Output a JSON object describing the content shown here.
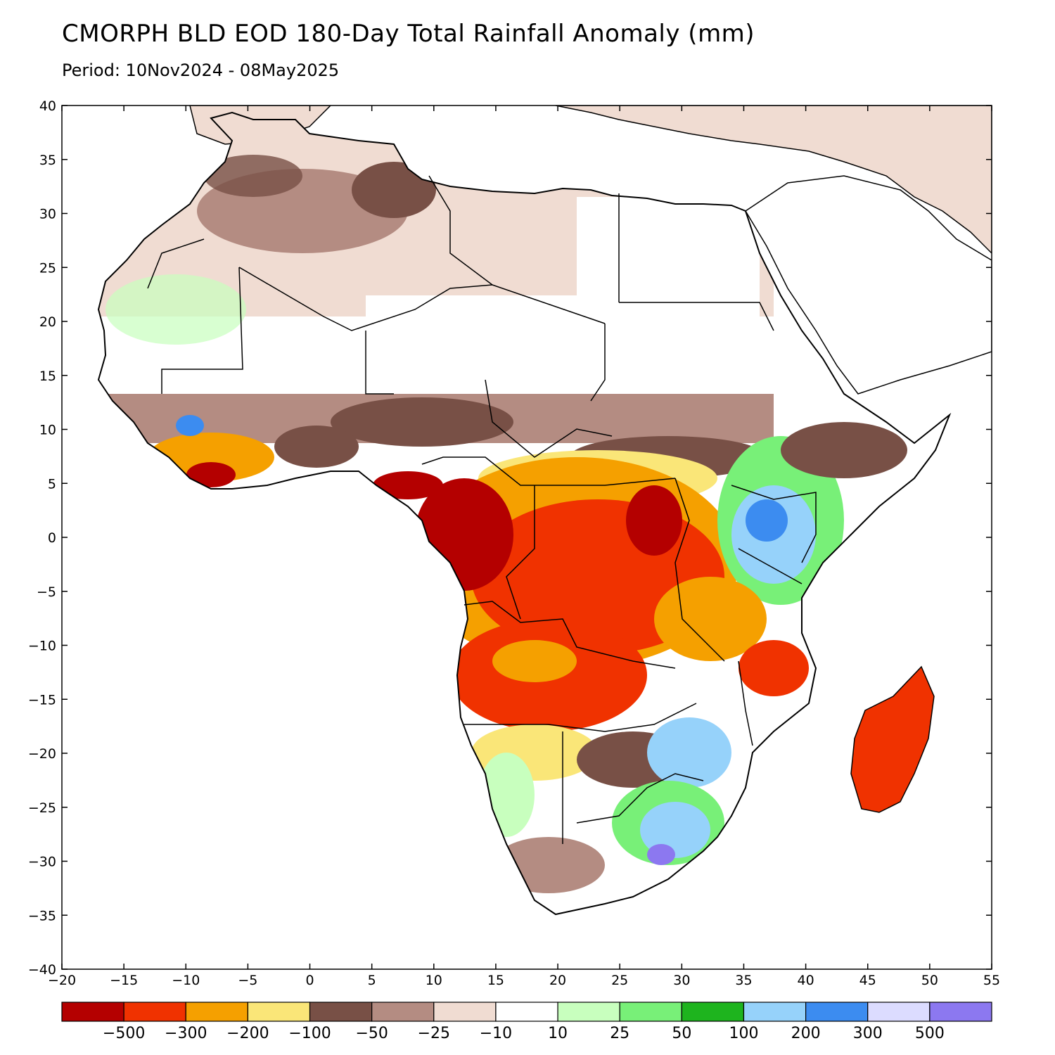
{
  "title": "CMORPH BLD EOD 180-Day Total Rainfall Anomaly (mm)",
  "subtitle": "Period: 10Nov2024 - 08May2025",
  "map": {
    "lon_range": [
      -20,
      55
    ],
    "lat_range": [
      -40,
      40
    ],
    "lon_ticks": [
      "−20",
      "−15",
      "−10",
      "−5",
      "0",
      "5",
      "10",
      "15",
      "20",
      "25",
      "30",
      "35",
      "40",
      "45",
      "50",
      "55"
    ],
    "lat_ticks": [
      "40",
      "35",
      "30",
      "25",
      "20",
      "15",
      "10",
      "5",
      "0",
      "−5",
      "−10",
      "−15",
      "−20",
      "−25",
      "−30",
      "−35",
      "−40"
    ]
  },
  "colorbar": {
    "colors": [
      "#b40000",
      "#f03200",
      "#f5a000",
      "#fae678",
      "#785046",
      "#b48c82",
      "#f0dcd2",
      "#ffffff",
      "#c8ffbe",
      "#78f078",
      "#1eb41e",
      "#96d2fa",
      "#3c8cf0",
      "#dcdcff",
      "#8c78f0"
    ],
    "labels": [
      "−500",
      "−300",
      "−200",
      "−100",
      "−50",
      "−25",
      "−10",
      "10",
      "25",
      "50",
      "100",
      "200",
      "300",
      "500"
    ]
  }
}
